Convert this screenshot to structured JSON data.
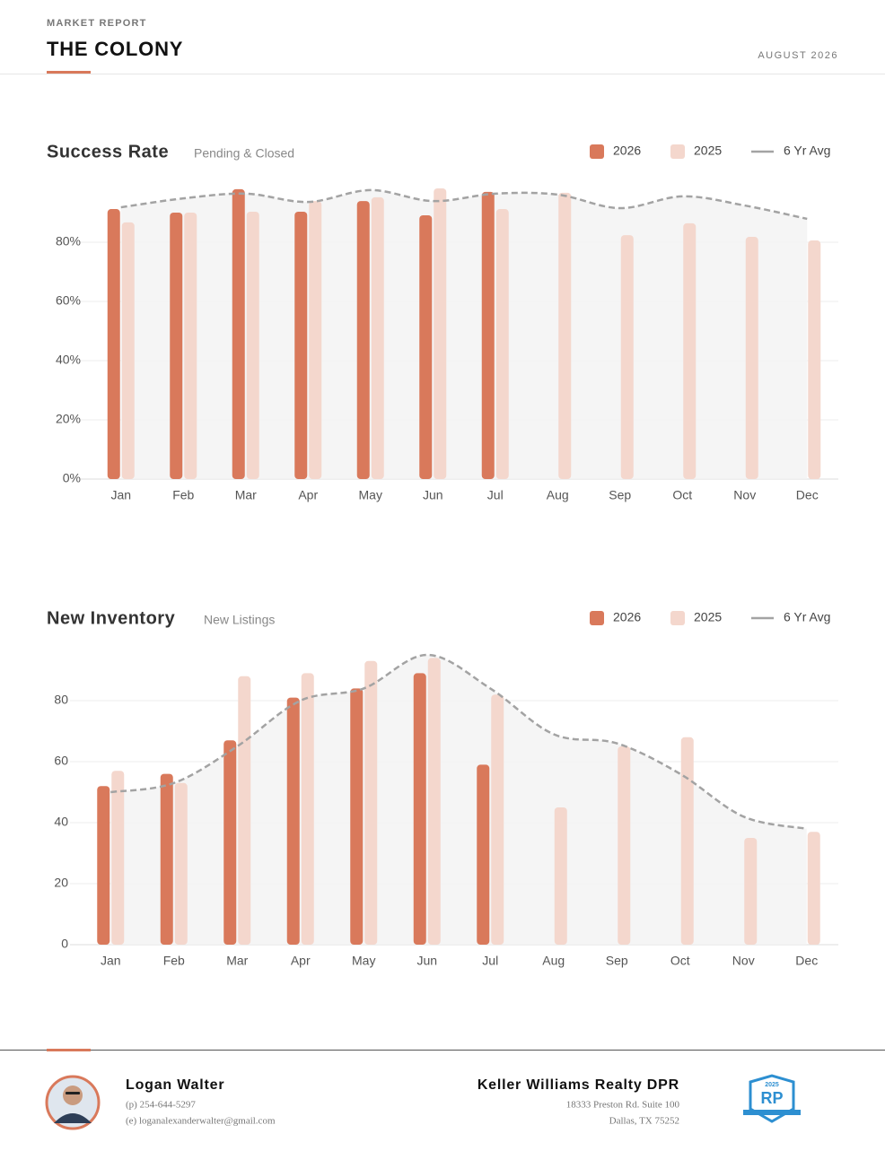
{
  "header": {
    "label": "MARKET REPORT",
    "title": "THE COLONY",
    "date": "AUGUST 2026"
  },
  "chart_data": [
    {
      "type": "bar",
      "title": "Success Rate",
      "subtitle": "Pending & Closed",
      "categories": [
        "Jan",
        "Feb",
        "Mar",
        "Apr",
        "May",
        "Jun",
        "Jul",
        "Aug",
        "Sep",
        "Oct",
        "Nov",
        "Dec"
      ],
      "series": [
        {
          "name": "2026",
          "color": "#d9795b",
          "values": [
            91.2,
            90,
            97.9,
            90.3,
            93.9,
            89.1,
            97,
            null,
            null,
            null,
            null,
            null
          ]
        },
        {
          "name": "2025",
          "color": "#f4d7cd",
          "values": [
            86.7,
            90,
            90.3,
            93.9,
            95.2,
            98.2,
            91.2,
            96.7,
            82.4,
            86.4,
            81.8,
            80.6
          ]
        },
        {
          "name": "6 Yr Avg",
          "color": "#a3a3a3",
          "type": "line",
          "values": [
            91.8,
            94.8,
            96.4,
            93.6,
            97.6,
            93.9,
            96.4,
            96.1,
            91.5,
            95.5,
            92.4,
            87.9
          ]
        }
      ],
      "ylim": [
        0,
        100
      ],
      "yticks": [
        {
          "value": 0,
          "label": "0%"
        },
        {
          "value": 20,
          "label": "20%"
        },
        {
          "value": 40,
          "label": "40%"
        },
        {
          "value": 60,
          "label": "60%"
        },
        {
          "value": 80,
          "label": "80%"
        }
      ],
      "grid": true
    },
    {
      "type": "bar",
      "title": "New Inventory",
      "subtitle": "New Listings",
      "categories": [
        "Jan",
        "Feb",
        "Mar",
        "Apr",
        "May",
        "Jun",
        "Jul",
        "Aug",
        "Sep",
        "Oct",
        "Nov",
        "Dec"
      ],
      "series": [
        {
          "name": "2026",
          "color": "#d9795b",
          "values": [
            52,
            56,
            67,
            81,
            84,
            89,
            59,
            null,
            null,
            null,
            null,
            null
          ]
        },
        {
          "name": "2025",
          "color": "#f4d7cd",
          "values": [
            57,
            53,
            88,
            89,
            93,
            94,
            82,
            45,
            65,
            68,
            35,
            37
          ]
        },
        {
          "name": "6 Yr Avg",
          "color": "#a3a3a3",
          "type": "line",
          "values": [
            50,
            53,
            65,
            80,
            84,
            95,
            84,
            69,
            66,
            56,
            42,
            38
          ]
        }
      ],
      "ylim": [
        0,
        100
      ],
      "yticks": [
        0,
        20,
        40,
        60,
        80
      ],
      "grid": true
    }
  ],
  "footer": {
    "name": "Logan Walter",
    "phone": "(p) 254-644-5297",
    "email": "(e) loganalexanderwalter@gmail.com",
    "company": "Keller Williams Realty DPR",
    "address1": "18333 Preston Rd. Suite 100",
    "address2": "Dallas, TX 75252",
    "badge_year": "2025",
    "badge_mark": "RP"
  }
}
